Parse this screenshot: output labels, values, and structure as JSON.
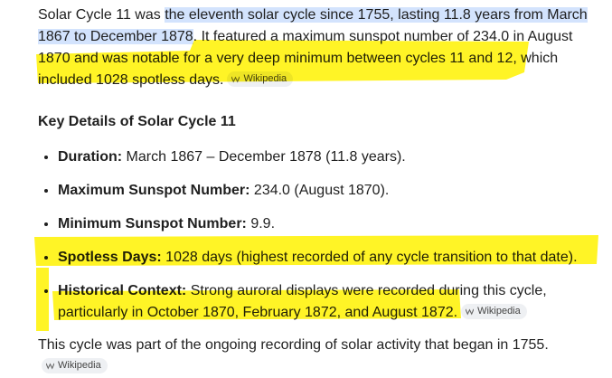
{
  "intro": {
    "before": "Solar Cycle 11 was ",
    "highlight": "the eleventh solar cycle since 1755, lasting 11.8 years from March 1867 to December 1878",
    "after": ". It featured a maximum sunspot number of 234.0 in August 1870 and was notable for a very deep minimum between cycles 11 and 12, which included 1028 spotless days.",
    "source": "Wikipedia"
  },
  "heading": "Key Details of Solar Cycle 11",
  "details": [
    {
      "label": "Duration:",
      "text": " March 1867 – December 1878 (11.8 years)."
    },
    {
      "label": "Maximum Sunspot Number:",
      "text": " 234.0 (August 1870)."
    },
    {
      "label": "Minimum Sunspot Number:",
      "text": " 9.9."
    },
    {
      "label": "Spotless Days:",
      "text": " 1028 days (highest recorded of any cycle transition to that date)."
    },
    {
      "label": "Historical Context:",
      "text": " Strong auroral displays were recorded during this cycle, particularly in October 1870, February 1872, and August 1872.",
      "source": "Wikipedia"
    }
  ],
  "closing": {
    "text": "This cycle was part of the ongoing recording of solar activity that began in 1755.",
    "source": "Wikipedia"
  }
}
